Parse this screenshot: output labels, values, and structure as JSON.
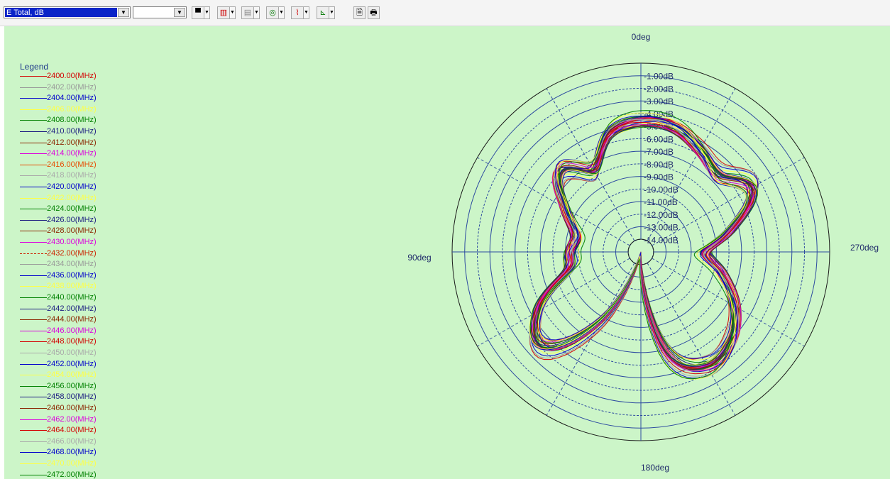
{
  "toolbar": {
    "quantity_select": "E Total, dB",
    "secondary_select": "",
    "buttons": [
      {
        "name": "marker-tool-button",
        "glyph": "▀"
      },
      {
        "name": "trace-tool-button",
        "glyph": "▥"
      },
      {
        "name": "grid-tool-button",
        "glyph": "▤"
      },
      {
        "name": "polar-tool-button",
        "glyph": "◎"
      },
      {
        "name": "curve-tool-button",
        "glyph": "⌇"
      },
      {
        "name": "axis-tool-button",
        "glyph": "⊾"
      },
      {
        "name": "copy-button",
        "glyph": "🗎"
      },
      {
        "name": "print-button",
        "glyph": "🖶"
      }
    ]
  },
  "legend": {
    "title": "Legend",
    "items": [
      {
        "label": "2400.00(MHz)",
        "color": "#d40000"
      },
      {
        "label": "2402.00(MHz)",
        "color": "#999999"
      },
      {
        "label": "2404.00(MHz)",
        "color": "#0000cc"
      },
      {
        "label": "2406.00(MHz)",
        "color": "#ffff44"
      },
      {
        "label": "2408.00(MHz)",
        "color": "#008000"
      },
      {
        "label": "2410.00(MHz)",
        "color": "#1a1a80"
      },
      {
        "label": "2412.00(MHz)",
        "color": "#8b2500"
      },
      {
        "label": "2414.00(MHz)",
        "color": "#dd00dd"
      },
      {
        "label": "2416.00(MHz)",
        "color": "#e84a00"
      },
      {
        "label": "2418.00(MHz)",
        "color": "#aaaaaa"
      },
      {
        "label": "2420.00(MHz)",
        "color": "#0000cc"
      },
      {
        "label": "2422.00(MHz)",
        "color": "#ffff44"
      },
      {
        "label": "2424.00(MHz)",
        "color": "#008000"
      },
      {
        "label": "2426.00(MHz)",
        "color": "#1a1a80"
      },
      {
        "label": "2428.00(MHz)",
        "color": "#8b2500"
      },
      {
        "label": "2430.00(MHz)",
        "color": "#dd00dd"
      },
      {
        "label": "2432.00(MHz)",
        "color": "#cc2200",
        "dashed": true
      },
      {
        "label": "2434.00(MHz)",
        "color": "#999999"
      },
      {
        "label": "2436.00(MHz)",
        "color": "#0000cc"
      },
      {
        "label": "2438.00(MHz)",
        "color": "#ffff44"
      },
      {
        "label": "2440.00(MHz)",
        "color": "#008000"
      },
      {
        "label": "2442.00(MHz)",
        "color": "#1a1a80"
      },
      {
        "label": "2444.00(MHz)",
        "color": "#8b2500"
      },
      {
        "label": "2446.00(MHz)",
        "color": "#dd00dd"
      },
      {
        "label": "2448.00(MHz)",
        "color": "#d40000"
      },
      {
        "label": "2450.00(MHz)",
        "color": "#aaaaaa"
      },
      {
        "label": "2452.00(MHz)",
        "color": "#0000cc"
      },
      {
        "label": "2454.00(MHz)",
        "color": "#ffff44"
      },
      {
        "label": "2456.00(MHz)",
        "color": "#008000"
      },
      {
        "label": "2458.00(MHz)",
        "color": "#1a1a80"
      },
      {
        "label": "2460.00(MHz)",
        "color": "#8b2500"
      },
      {
        "label": "2462.00(MHz)",
        "color": "#dd00dd"
      },
      {
        "label": "2464.00(MHz)",
        "color": "#d40000"
      },
      {
        "label": "2466.00(MHz)",
        "color": "#aaaaaa"
      },
      {
        "label": "2468.00(MHz)",
        "color": "#0000cc"
      },
      {
        "label": "2470.00(MHz)",
        "color": "#ffff44"
      },
      {
        "label": "2472.00(MHz)",
        "color": "#008000"
      }
    ]
  },
  "polar": {
    "angle_labels": {
      "top": "0deg",
      "left": "90deg",
      "right": "270deg",
      "bottom": "180deg"
    },
    "ring_labels": [
      "-1.00dB",
      "-2.00dB",
      "-3.00dB",
      "-4.00dB",
      "-5.00dB",
      "-6.00dB",
      "-7.00dB",
      "-8.00dB",
      "-9.00dB",
      "-10.00dB",
      "-11.00dB",
      "-12.00dB",
      "-13.00dB",
      "-14.00dB"
    ]
  },
  "chart_data": {
    "type": "polar",
    "quantity": "E Total, dB",
    "radial_range_db": [
      -15,
      0
    ],
    "radial_ticks_db": [
      -1,
      -2,
      -3,
      -4,
      -5,
      -6,
      -7,
      -8,
      -9,
      -10,
      -11,
      -12,
      -13,
      -14
    ],
    "angle_axis": {
      "top": "0deg",
      "left": "90deg",
      "bottom": "180deg",
      "right": "270deg"
    },
    "series_names": [
      "2400.00(MHz)",
      "2402.00(MHz)",
      "2404.00(MHz)",
      "2406.00(MHz)",
      "2408.00(MHz)",
      "2410.00(MHz)",
      "2412.00(MHz)",
      "2414.00(MHz)",
      "2416.00(MHz)",
      "2418.00(MHz)",
      "2420.00(MHz)",
      "2422.00(MHz)",
      "2424.00(MHz)",
      "2426.00(MHz)",
      "2428.00(MHz)",
      "2430.00(MHz)",
      "2432.00(MHz)",
      "2434.00(MHz)",
      "2436.00(MHz)",
      "2438.00(MHz)",
      "2440.00(MHz)",
      "2442.00(MHz)",
      "2444.00(MHz)",
      "2446.00(MHz)",
      "2448.00(MHz)",
      "2450.00(MHz)",
      "2452.00(MHz)",
      "2454.00(MHz)",
      "2456.00(MHz)",
      "2458.00(MHz)",
      "2460.00(MHz)",
      "2462.00(MHz)",
      "2464.00(MHz)",
      "2466.00(MHz)",
      "2468.00(MHz)",
      "2470.00(MHz)",
      "2472.00(MHz)"
    ],
    "base_pattern": {
      "angles_deg": [
        0,
        15,
        30,
        45,
        60,
        75,
        90,
        105,
        120,
        135,
        150,
        165,
        180,
        195,
        210,
        225,
        240,
        255,
        270,
        285,
        300,
        315,
        330,
        345
      ],
      "values_db": [
        -4.5,
        -5.2,
        -7.5,
        -6.0,
        -8.2,
        -9.8,
        -9.5,
        -9.0,
        -5.5,
        -4.2,
        -8.5,
        -14.5,
        -13.8,
        -6.5,
        -4.5,
        -5.0,
        -6.5,
        -8.5,
        -10.0,
        -7.5,
        -4.8,
        -6.2,
        -5.5,
        -4.6
      ]
    }
  }
}
